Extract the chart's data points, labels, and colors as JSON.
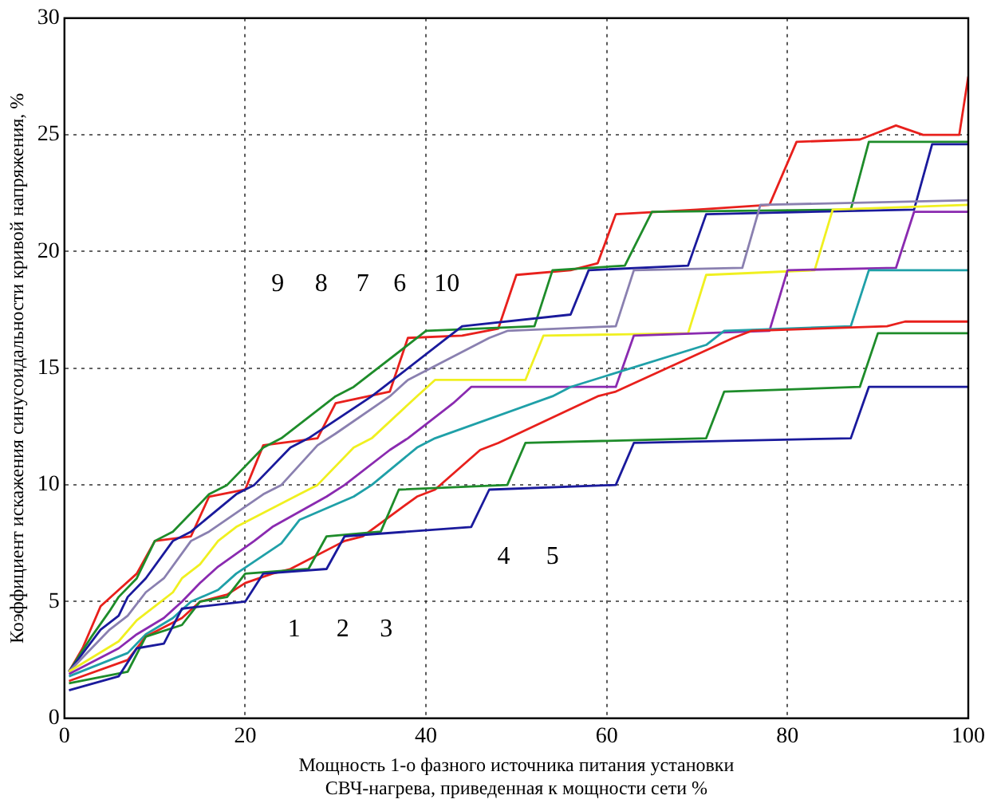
{
  "chart_data": {
    "type": "line",
    "xlabel": "Мощность 1-о фазного источника питания установки\nСВЧ-нагрева, приведенная к мощности сети %",
    "ylabel": "Коэффициент искажения синусоидальности кривой напряжения, %",
    "xlim": [
      0,
      100
    ],
    "xticks": [
      0,
      20,
      40,
      60,
      80,
      100
    ],
    "ylim": [
      0,
      30
    ],
    "yticks": [
      0,
      5,
      10,
      15,
      20,
      25,
      30
    ],
    "grid": true,
    "line_style": "solid",
    "marker": "none",
    "series": [
      {
        "color": "#1a1a9c",
        "x": [
          0.5,
          6,
          8,
          11,
          13,
          20,
          22,
          29,
          31,
          45,
          47,
          61,
          63,
          87,
          89,
          100
        ],
        "values": [
          1.2,
          1.8,
          3,
          3.2,
          4.7,
          5,
          6.2,
          6.4,
          7.8,
          8.2,
          9.8,
          10,
          11.8,
          12,
          14.2,
          14.2
        ]
      },
      {
        "color": "#1e8c2a",
        "x": [
          0.5,
          7,
          9,
          13,
          15,
          18,
          20,
          27,
          29,
          35,
          37,
          49,
          51,
          71,
          73,
          88,
          90,
          100
        ],
        "values": [
          1.5,
          2,
          3.5,
          4,
          5,
          5.2,
          6.2,
          6.4,
          7.8,
          8,
          9.8,
          10,
          11.8,
          12,
          14,
          14.2,
          16.5,
          16.5
        ]
      },
      {
        "color": "#e8201c",
        "x": [
          0.5,
          7,
          9,
          13,
          15,
          18,
          20,
          23,
          25,
          31,
          33,
          39,
          41,
          46,
          48,
          59,
          61,
          74,
          76,
          91,
          93,
          100
        ],
        "values": [
          1.6,
          2.5,
          3.5,
          4.3,
          5,
          5.3,
          5.8,
          6.2,
          6.4,
          7.6,
          7.8,
          9.5,
          9.8,
          11.5,
          11.8,
          13.8,
          14,
          16.3,
          16.6,
          16.8,
          17,
          17
        ]
      },
      {
        "color": "#1fa0a8",
        "x": [
          0.5,
          7,
          9,
          12,
          14,
          17,
          19,
          24,
          26,
          32,
          34,
          39,
          41,
          54,
          56,
          71,
          73,
          87,
          89,
          100
        ],
        "values": [
          1.8,
          2.8,
          3.6,
          4.3,
          5,
          5.5,
          6.2,
          7.5,
          8.5,
          9.5,
          10,
          11.6,
          12,
          13.8,
          14.2,
          16,
          16.6,
          16.8,
          19.2,
          19.2
        ]
      },
      {
        "color": "#8a2ab0",
        "x": [
          0.5,
          6,
          8,
          11,
          13,
          15,
          17,
          21,
          23,
          29,
          31,
          36,
          38,
          43,
          45,
          61,
          63,
          78,
          80,
          92,
          94,
          100
        ],
        "values": [
          1.9,
          3,
          3.6,
          4.3,
          5,
          5.8,
          6.5,
          7.6,
          8.2,
          9.5,
          10,
          11.5,
          12,
          13.5,
          14.2,
          14.2,
          16.4,
          16.6,
          19.2,
          19.3,
          21.7,
          21.7
        ]
      },
      {
        "color": "#f0f020",
        "x": [
          0.5,
          6,
          8,
          10,
          12,
          13,
          15,
          17,
          19,
          26,
          28,
          32,
          34,
          39,
          41,
          51,
          53,
          69,
          71,
          83,
          85,
          100
        ],
        "values": [
          2,
          3.3,
          4.2,
          4.8,
          5.4,
          6,
          6.6,
          7.6,
          8.2,
          9.6,
          10,
          11.6,
          12,
          13.8,
          14.5,
          14.5,
          16.4,
          16.5,
          19,
          19.2,
          21.8,
          22
        ]
      },
      {
        "color": "#8a80b0",
        "x": [
          0.5,
          5,
          7,
          9,
          11,
          14,
          16,
          22,
          24,
          28,
          30,
          36,
          38,
          47,
          49,
          61,
          63,
          75,
          77,
          100
        ],
        "values": [
          2,
          3.8,
          4.4,
          5.4,
          6,
          7.6,
          8,
          9.6,
          10,
          11.7,
          12.2,
          13.8,
          14.5,
          16.3,
          16.6,
          16.8,
          19.2,
          19.3,
          22,
          22.2
        ]
      },
      {
        "color": "#1a1a9c",
        "x": [
          0.5,
          4,
          6,
          7,
          9,
          12,
          14,
          19,
          21,
          25,
          27,
          34,
          36,
          42,
          44,
          56,
          58,
          69,
          71,
          94,
          96,
          100
        ],
        "values": [
          2,
          3.8,
          4.4,
          5.2,
          6,
          7.6,
          8,
          9.6,
          10,
          11.6,
          12,
          13.8,
          14.4,
          16.2,
          16.8,
          17.3,
          19.2,
          19.4,
          21.6,
          21.8,
          24.6,
          24.6
        ]
      },
      {
        "color": "#1e8c2a",
        "x": [
          0.5,
          3,
          5,
          6,
          8,
          10,
          12,
          16,
          18,
          22,
          24,
          30,
          32,
          38,
          40,
          52,
          54,
          62,
          65,
          87,
          89,
          100
        ],
        "values": [
          2,
          3.5,
          4.6,
          5.2,
          6,
          7.6,
          8,
          9.6,
          10,
          11.6,
          12,
          13.8,
          14.2,
          16,
          16.6,
          16.8,
          19.2,
          19.4,
          21.7,
          21.8,
          24.7,
          24.7
        ]
      },
      {
        "color": "#e8201c",
        "x": [
          0.5,
          2,
          4,
          6,
          8,
          10,
          14,
          16,
          20,
          22,
          28,
          30,
          36,
          38,
          44,
          48,
          50,
          56,
          59,
          61,
          70,
          78,
          81,
          88,
          92,
          95,
          99,
          100
        ],
        "values": [
          2,
          3,
          4.8,
          5.5,
          6.2,
          7.6,
          7.8,
          9.5,
          9.8,
          11.7,
          12,
          13.5,
          14,
          16.3,
          16.4,
          16.7,
          19,
          19.2,
          19.5,
          21.6,
          21.8,
          22,
          24.7,
          24.8,
          25.4,
          25,
          25,
          27.5
        ]
      }
    ],
    "annotations": [
      {
        "text": "1",
        "x": 25.4,
        "y": 3.8
      },
      {
        "text": "2",
        "x": 30.8,
        "y": 3.8
      },
      {
        "text": "3",
        "x": 35.6,
        "y": 3.8
      },
      {
        "text": "4",
        "x": 48.6,
        "y": 6.9
      },
      {
        "text": "5",
        "x": 54,
        "y": 6.9
      },
      {
        "text": "6",
        "x": 37.1,
        "y": 18.6
      },
      {
        "text": "7",
        "x": 33,
        "y": 18.6
      },
      {
        "text": "8",
        "x": 28.4,
        "y": 18.6
      },
      {
        "text": "9",
        "x": 23.6,
        "y": 18.6
      },
      {
        "text": "10",
        "x": 42.3,
        "y": 18.6
      }
    ]
  }
}
